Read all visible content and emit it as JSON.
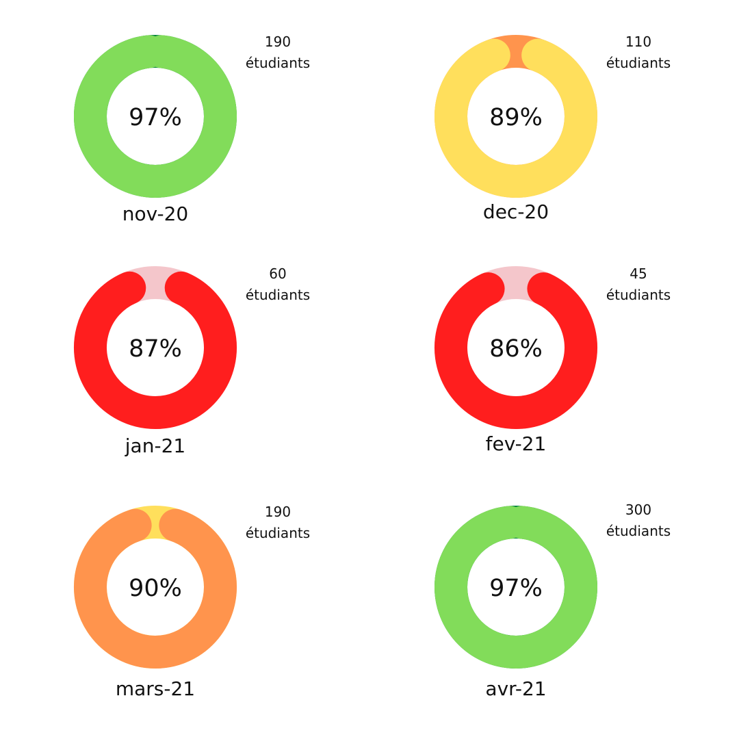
{
  "chart_data": [
    {
      "type": "pie",
      "category": "nov-20",
      "center_label": "97%",
      "value": 97,
      "count_value": "190",
      "count_unit": "étudiants",
      "fill_color": "#82dc5a",
      "track_color": "#00833a"
    },
    {
      "type": "pie",
      "category": "dec-20",
      "center_label": "89%",
      "value": 89,
      "count_value": "110",
      "count_unit": "étudiants",
      "fill_color": "#ffdf5c",
      "track_color": "#ff944d"
    },
    {
      "type": "pie",
      "category": "jan-21",
      "center_label": "87%",
      "value": 87,
      "count_value": "60",
      "count_unit": "étudiants",
      "fill_color": "#ff1e1e",
      "track_color": "#f4c6cb"
    },
    {
      "type": "pie",
      "category": "fev-21",
      "center_label": "86%",
      "value": 86,
      "count_value": "45",
      "count_unit": "étudiants",
      "fill_color": "#ff1e1e",
      "track_color": "#f4c6cb"
    },
    {
      "type": "pie",
      "category": "mars-21",
      "center_label": "90%",
      "value": 90,
      "count_value": "190",
      "count_unit": "étudiants",
      "fill_color": "#ff944d",
      "track_color": "#ffdf5c"
    },
    {
      "type": "pie",
      "category": "avr-21",
      "center_label": "97%",
      "value": 97,
      "count_value": "300",
      "count_unit": "étudiants",
      "fill_color": "#82dc5a",
      "track_color": "#00833a"
    }
  ]
}
